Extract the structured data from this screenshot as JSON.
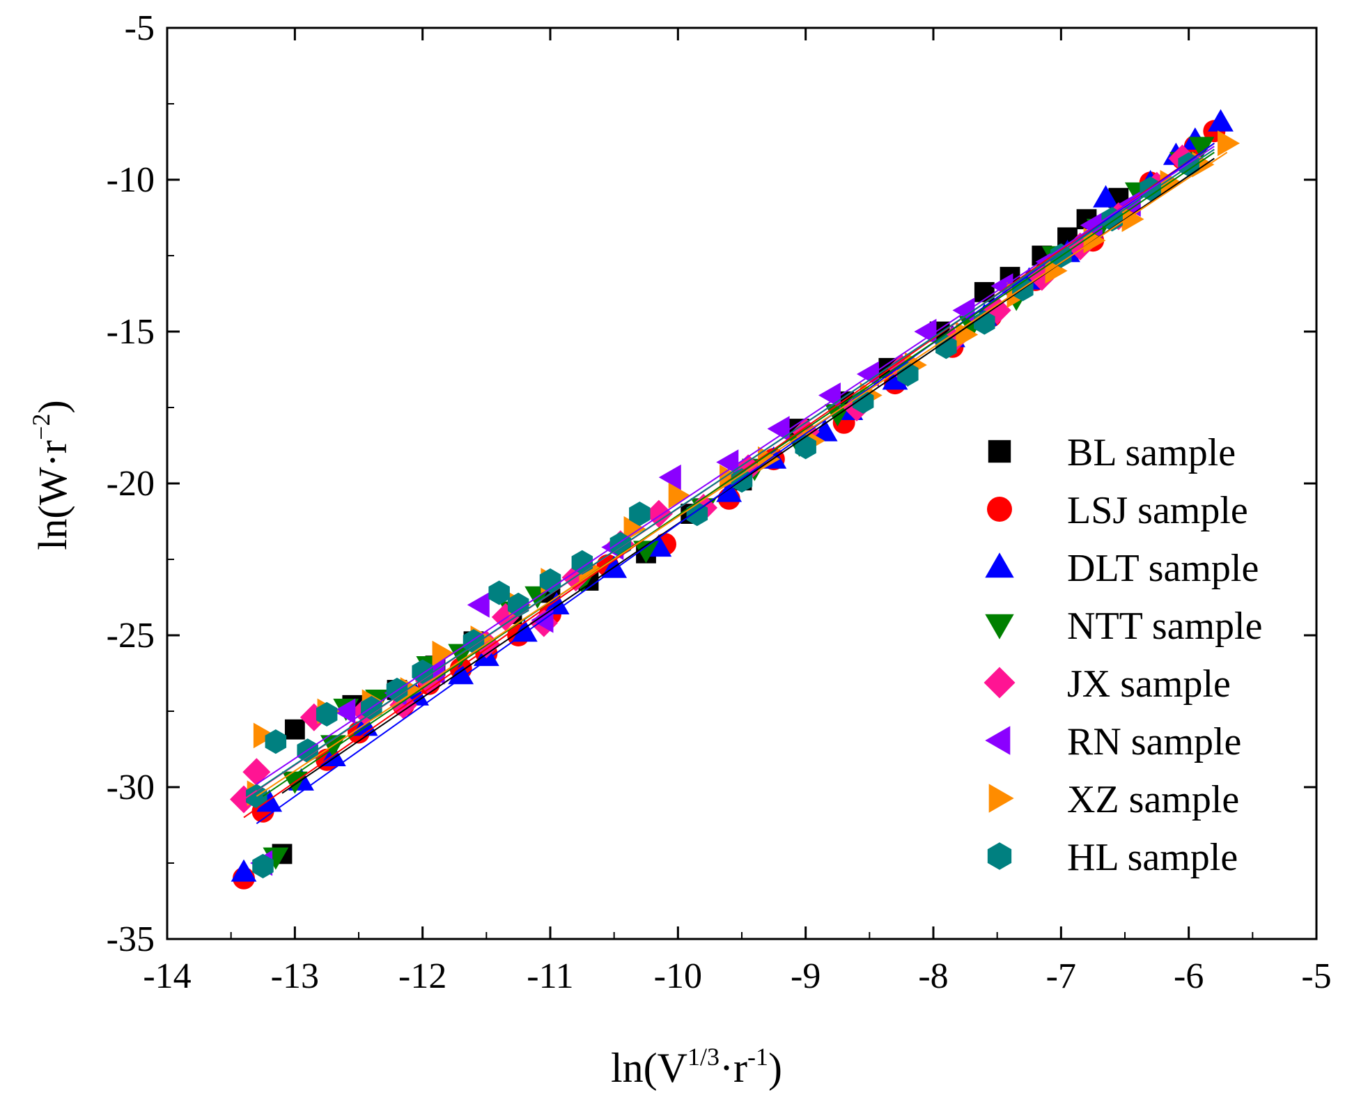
{
  "chart_data": {
    "type": "scatter",
    "xlabel": {
      "base": "ln(V",
      "sup1": "1/3",
      "mid": "·r",
      "sup2": "-1",
      "close": ")"
    },
    "ylabel": {
      "base": "ln(W·r",
      "sup": "−2",
      "close": ")"
    },
    "xlim": [
      -14,
      -5
    ],
    "ylim": [
      -35,
      -5
    ],
    "xticks": [
      -14,
      -13,
      -12,
      -11,
      -10,
      -9,
      -8,
      -7,
      -6,
      -5
    ],
    "yticks": [
      -35,
      -30,
      -25,
      -20,
      -15,
      -10,
      -5
    ],
    "legend_position": "center-right",
    "series": [
      {
        "name": "BL sample",
        "marker": "square",
        "color": "#000000",
        "fit": [
          -13.1,
          -30.2,
          -5.8,
          -9.3
        ],
        "points": [
          [
            -13.1,
            -32.2
          ],
          [
            -13.0,
            -28.1
          ],
          [
            -12.55,
            -27.3
          ],
          [
            -12.2,
            -26.8
          ],
          [
            -11.9,
            -26.0
          ],
          [
            -11.6,
            -25.2
          ],
          [
            -11.3,
            -24.3
          ],
          [
            -11.0,
            -23.6
          ],
          [
            -10.7,
            -23.2
          ],
          [
            -10.25,
            -22.3
          ],
          [
            -9.9,
            -21.0
          ],
          [
            -9.5,
            -19.9
          ],
          [
            -9.05,
            -18.2
          ],
          [
            -8.7,
            -17.3
          ],
          [
            -8.35,
            -16.2
          ],
          [
            -7.95,
            -15.0
          ],
          [
            -7.6,
            -13.7
          ],
          [
            -7.4,
            -13.2
          ],
          [
            -7.15,
            -12.5
          ],
          [
            -6.95,
            -11.9
          ],
          [
            -6.8,
            -11.3
          ],
          [
            -6.55,
            -10.6
          ]
        ]
      },
      {
        "name": "LSJ sample",
        "marker": "circle",
        "color": "#ff0000",
        "fit": [
          -13.4,
          -31.0,
          -5.8,
          -8.8
        ],
        "points": [
          [
            -13.4,
            -33.0
          ],
          [
            -13.25,
            -30.8
          ],
          [
            -12.75,
            -29.1
          ],
          [
            -12.5,
            -28.2
          ],
          [
            -12.15,
            -27.3
          ],
          [
            -11.95,
            -26.6
          ],
          [
            -11.7,
            -26.1
          ],
          [
            -11.5,
            -25.6
          ],
          [
            -11.25,
            -25.0
          ],
          [
            -11.0,
            -24.3
          ],
          [
            -10.55,
            -22.7
          ],
          [
            -10.1,
            -22.0
          ],
          [
            -9.6,
            -20.5
          ],
          [
            -9.25,
            -19.2
          ],
          [
            -8.7,
            -18.0
          ],
          [
            -8.3,
            -16.7
          ],
          [
            -7.85,
            -15.5
          ],
          [
            -7.55,
            -14.5
          ],
          [
            -7.2,
            -13.3
          ],
          [
            -6.75,
            -12.0
          ],
          [
            -6.5,
            -11.1
          ],
          [
            -6.3,
            -10.1
          ],
          [
            -6.05,
            -9.3
          ],
          [
            -5.95,
            -8.9
          ],
          [
            -5.8,
            -8.4
          ]
        ]
      },
      {
        "name": "DLT sample",
        "marker": "triangle-up",
        "color": "#0000ff",
        "fit": [
          -13.3,
          -31.2,
          -5.8,
          -8.8
        ],
        "points": [
          [
            -13.4,
            -32.8
          ],
          [
            -13.2,
            -30.5
          ],
          [
            -12.95,
            -29.8
          ],
          [
            -12.7,
            -29.0
          ],
          [
            -12.45,
            -28.0
          ],
          [
            -12.05,
            -27.0
          ],
          [
            -11.7,
            -26.3
          ],
          [
            -11.5,
            -25.7
          ],
          [
            -11.2,
            -24.9
          ],
          [
            -10.95,
            -24.0
          ],
          [
            -10.5,
            -22.8
          ],
          [
            -10.15,
            -22.1
          ],
          [
            -9.6,
            -20.3
          ],
          [
            -9.25,
            -19.2
          ],
          [
            -8.85,
            -18.3
          ],
          [
            -8.65,
            -17.6
          ],
          [
            -8.3,
            -16.6
          ],
          [
            -7.85,
            -15.2
          ],
          [
            -7.6,
            -14.5
          ],
          [
            -7.25,
            -13.3
          ],
          [
            -6.95,
            -12.4
          ],
          [
            -6.65,
            -10.6
          ],
          [
            -6.3,
            -10.1
          ],
          [
            -6.1,
            -9.2
          ],
          [
            -5.95,
            -8.7
          ],
          [
            -5.75,
            -8.1
          ]
        ]
      },
      {
        "name": "NTT sample",
        "marker": "triangle-down",
        "color": "#008000",
        "fit": [
          -13.25,
          -30.3,
          -5.8,
          -9.1
        ],
        "points": [
          [
            -13.15,
            -32.3
          ],
          [
            -13.0,
            -29.8
          ],
          [
            -12.7,
            -28.6
          ],
          [
            -12.6,
            -27.4
          ],
          [
            -12.35,
            -27.1
          ],
          [
            -11.95,
            -26.0
          ],
          [
            -11.7,
            -25.6
          ],
          [
            -11.3,
            -24.2
          ],
          [
            -11.1,
            -23.7
          ],
          [
            -10.75,
            -23.2
          ],
          [
            -10.25,
            -22.2
          ],
          [
            -9.8,
            -20.8
          ],
          [
            -9.4,
            -19.5
          ],
          [
            -9.05,
            -18.7
          ],
          [
            -8.75,
            -17.7
          ],
          [
            -8.2,
            -16.4
          ],
          [
            -7.7,
            -14.8
          ],
          [
            -7.35,
            -13.9
          ],
          [
            -7.05,
            -12.5
          ],
          [
            -6.7,
            -11.6
          ],
          [
            -6.4,
            -10.4
          ],
          [
            -6.05,
            -9.4
          ],
          [
            -5.9,
            -8.9
          ]
        ]
      },
      {
        "name": "JX sample",
        "marker": "diamond",
        "color": "#ff1493",
        "fit": [
          -13.4,
          -30.4,
          -5.8,
          -9.0
        ],
        "points": [
          [
            -13.4,
            -30.4
          ],
          [
            -13.3,
            -29.5
          ],
          [
            -12.85,
            -27.7
          ],
          [
            -12.45,
            -27.5
          ],
          [
            -12.15,
            -27.3
          ],
          [
            -11.95,
            -26.5
          ],
          [
            -11.5,
            -25.3
          ],
          [
            -11.35,
            -24.4
          ],
          [
            -11.05,
            -24.6
          ],
          [
            -10.8,
            -23.1
          ],
          [
            -10.45,
            -22.0
          ],
          [
            -10.15,
            -21.0
          ],
          [
            -9.8,
            -20.8
          ],
          [
            -9.45,
            -19.5
          ],
          [
            -9.0,
            -18.3
          ],
          [
            -8.6,
            -17.5
          ],
          [
            -8.25,
            -16.2
          ],
          [
            -7.85,
            -15.3
          ],
          [
            -7.5,
            -14.3
          ],
          [
            -7.15,
            -13.2
          ],
          [
            -6.85,
            -12.2
          ],
          [
            -6.55,
            -11.2
          ],
          [
            -6.25,
            -10.2
          ],
          [
            -6.05,
            -9.3
          ]
        ]
      },
      {
        "name": "RN sample",
        "marker": "triangle-left",
        "color": "#8b00ff",
        "fit": [
          -13.3,
          -29.9,
          -5.8,
          -8.9
        ],
        "points": [
          [
            -13.25,
            -32.5
          ],
          [
            -12.6,
            -27.5
          ],
          [
            -12.2,
            -26.9
          ],
          [
            -11.9,
            -26.2
          ],
          [
            -11.55,
            -24.0
          ],
          [
            -11.05,
            -24.5
          ],
          [
            -10.5,
            -22.1
          ],
          [
            -10.05,
            -19.8
          ],
          [
            -9.6,
            -19.3
          ],
          [
            -9.2,
            -18.2
          ],
          [
            -8.8,
            -17.1
          ],
          [
            -8.5,
            -16.4
          ],
          [
            -8.05,
            -15.0
          ],
          [
            -7.75,
            -14.3
          ],
          [
            -7.45,
            -13.5
          ],
          [
            -7.1,
            -12.7
          ],
          [
            -6.75,
            -11.5
          ],
          [
            -6.45,
            -10.8
          ]
        ]
      },
      {
        "name": "XZ sample",
        "marker": "triangle-right",
        "color": "#ff8c00",
        "fit": [
          -13.3,
          -30.3,
          -5.7,
          -9.1
        ],
        "points": [
          [
            -13.3,
            -30.2
          ],
          [
            -13.25,
            -28.3
          ],
          [
            -12.75,
            -27.5
          ],
          [
            -12.4,
            -27.2
          ],
          [
            -12.1,
            -26.8
          ],
          [
            -11.85,
            -25.6
          ],
          [
            -11.55,
            -25.1
          ],
          [
            -11.25,
            -24.0
          ],
          [
            -11.0,
            -23.2
          ],
          [
            -10.7,
            -22.8
          ],
          [
            -10.35,
            -21.5
          ],
          [
            -10.0,
            -20.4
          ],
          [
            -9.6,
            -19.8
          ],
          [
            -9.3,
            -19.2
          ],
          [
            -8.95,
            -18.6
          ],
          [
            -8.5,
            -17.1
          ],
          [
            -8.15,
            -16.1
          ],
          [
            -7.75,
            -15.1
          ],
          [
            -7.35,
            -13.8
          ],
          [
            -7.05,
            -13.0
          ],
          [
            -6.75,
            -12.0
          ],
          [
            -6.45,
            -11.3
          ],
          [
            -6.15,
            -10.1
          ],
          [
            -5.9,
            -9.5
          ],
          [
            -5.7,
            -8.8
          ]
        ]
      },
      {
        "name": "HL sample",
        "marker": "hexagon",
        "color": "#008080",
        "fit": [
          -13.3,
          -30.1,
          -5.8,
          -9.0
        ],
        "points": [
          [
            -13.25,
            -32.6
          ],
          [
            -13.3,
            -30.3
          ],
          [
            -13.15,
            -28.5
          ],
          [
            -12.9,
            -28.8
          ],
          [
            -12.75,
            -27.6
          ],
          [
            -12.4,
            -27.4
          ],
          [
            -12.2,
            -26.8
          ],
          [
            -12.0,
            -26.2
          ],
          [
            -11.6,
            -25.2
          ],
          [
            -11.4,
            -23.6
          ],
          [
            -11.25,
            -24.0
          ],
          [
            -11.0,
            -23.2
          ],
          [
            -10.75,
            -22.6
          ],
          [
            -10.45,
            -22.0
          ],
          [
            -10.3,
            -21.0
          ],
          [
            -9.85,
            -21.0
          ],
          [
            -9.5,
            -19.9
          ],
          [
            -9.0,
            -18.8
          ],
          [
            -8.55,
            -17.3
          ],
          [
            -8.2,
            -16.4
          ],
          [
            -7.9,
            -15.5
          ],
          [
            -7.6,
            -14.7
          ],
          [
            -7.3,
            -13.6
          ],
          [
            -7.0,
            -12.5
          ],
          [
            -6.6,
            -11.3
          ],
          [
            -6.3,
            -10.3
          ],
          [
            -6.0,
            -9.5
          ]
        ]
      }
    ]
  }
}
